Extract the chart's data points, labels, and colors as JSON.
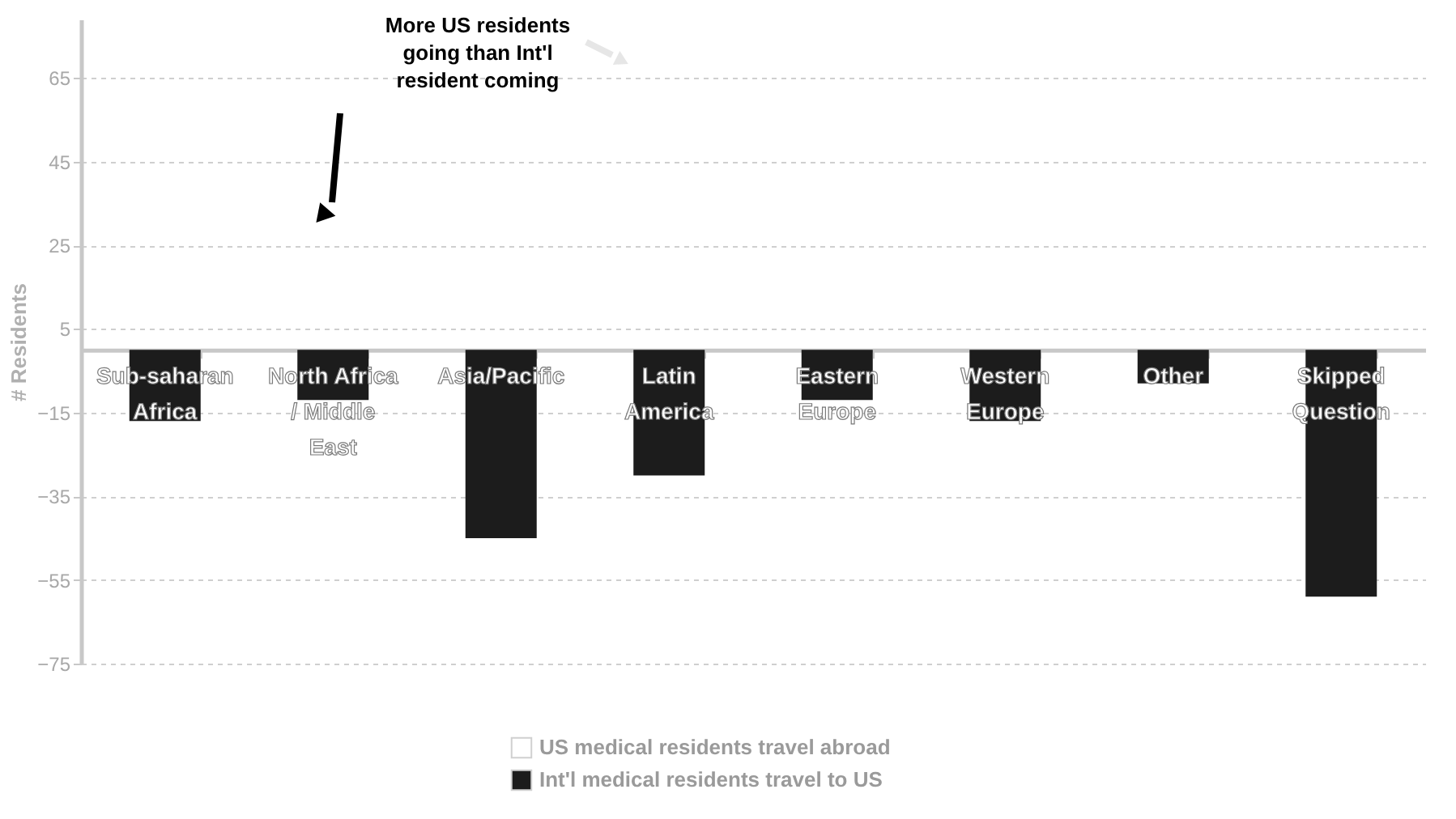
{
  "chart_data": {
    "type": "bar",
    "categories": [
      "Sub-saharan Africa",
      "North Africa / Middle East",
      "Asia/Pacific",
      "Latin America",
      "Eastern Europe",
      "Western Europe",
      "Other",
      "Skipped Question"
    ],
    "series": [
      {
        "name": "US medical residents travel abroad",
        "color": "#ffffff",
        "values": [
          null,
          null,
          null,
          null,
          null,
          null,
          null,
          null
        ]
      },
      {
        "name": "Int'l medical residents travel to US",
        "color": "#1c1c1c",
        "values": [
          -17,
          -12,
          -45,
          -30,
          -12,
          -17,
          -8,
          -59
        ]
      }
    ],
    "ylabel": "# Residents",
    "ylim": [
      -75,
      79
    ],
    "yticks": [
      65,
      45,
      25,
      5,
      -15,
      -35,
      -55,
      -75
    ],
    "grid": "y",
    "legend": "bottom",
    "annotations": [
      "More US residents going than Int'l resident coming"
    ]
  }
}
